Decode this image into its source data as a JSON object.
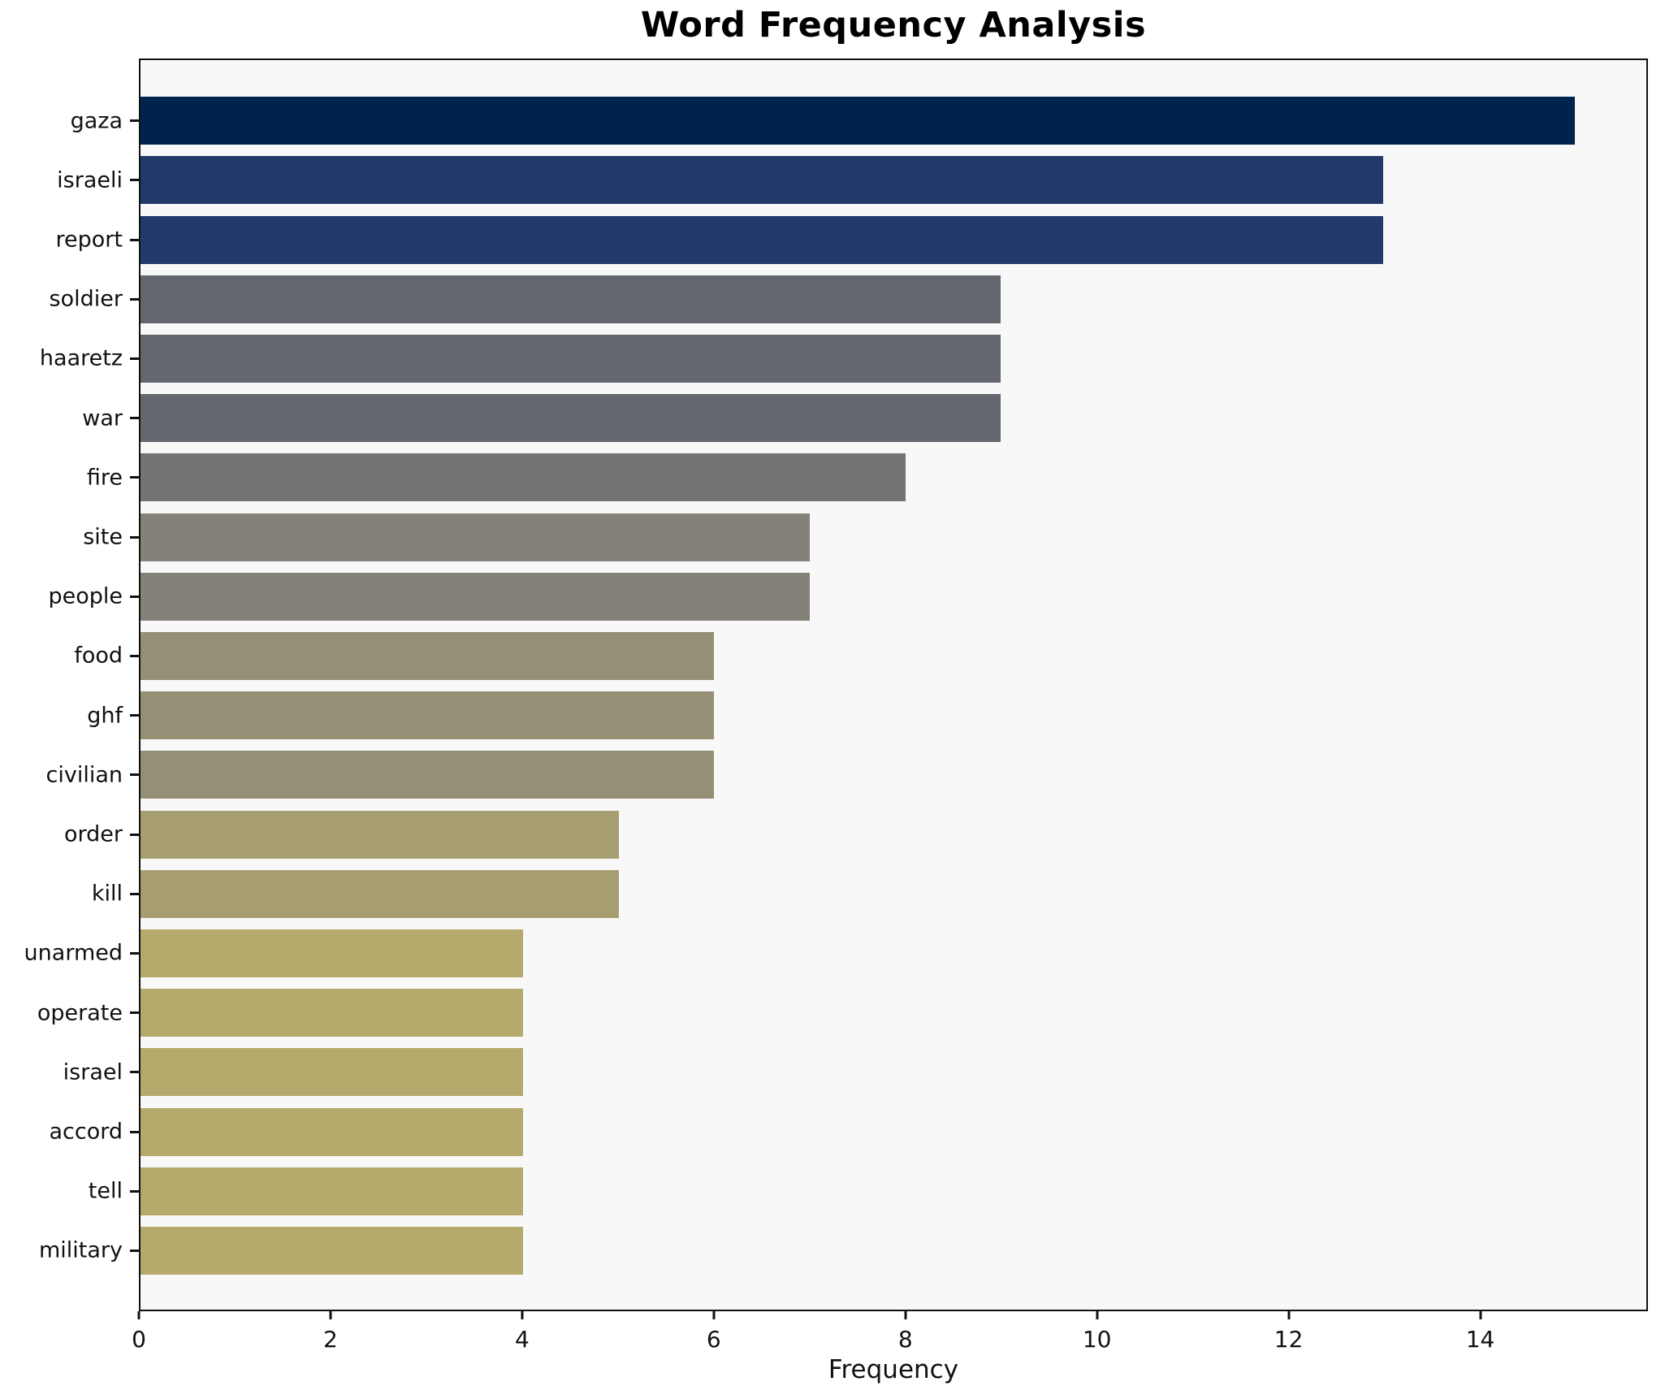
{
  "chart_data": {
    "type": "bar",
    "orientation": "horizontal",
    "title": "Word Frequency Analysis",
    "xlabel": "Frequency",
    "ylabel": "",
    "xlim": [
      0,
      15.75
    ],
    "x_ticks": [
      0,
      2,
      4,
      6,
      8,
      10,
      12,
      14
    ],
    "grid": false,
    "legend": false,
    "plot_background": "#f8f8f8",
    "categories": [
      "gaza",
      "israeli",
      "report",
      "soldier",
      "haaretz",
      "war",
      "fire",
      "site",
      "people",
      "food",
      "ghf",
      "civilian",
      "order",
      "kill",
      "unarmed",
      "operate",
      "israel",
      "accord",
      "tell",
      "military"
    ],
    "values": [
      15,
      13,
      13,
      9,
      9,
      9,
      8,
      7,
      7,
      6,
      6,
      6,
      5,
      5,
      4,
      4,
      4,
      4,
      4,
      4
    ],
    "bar_colors": [
      "#00234e",
      "#22396b",
      "#22396b",
      "#65676f",
      "#65676f",
      "#65676f",
      "#747473",
      "#838178",
      "#838178",
      "#948f75",
      "#948f75",
      "#948f75",
      "#a69e71",
      "#a69e71",
      "#b5a96c",
      "#b5a96c",
      "#b5a96c",
      "#b5a96c",
      "#b5a96c",
      "#b5a96c"
    ]
  }
}
